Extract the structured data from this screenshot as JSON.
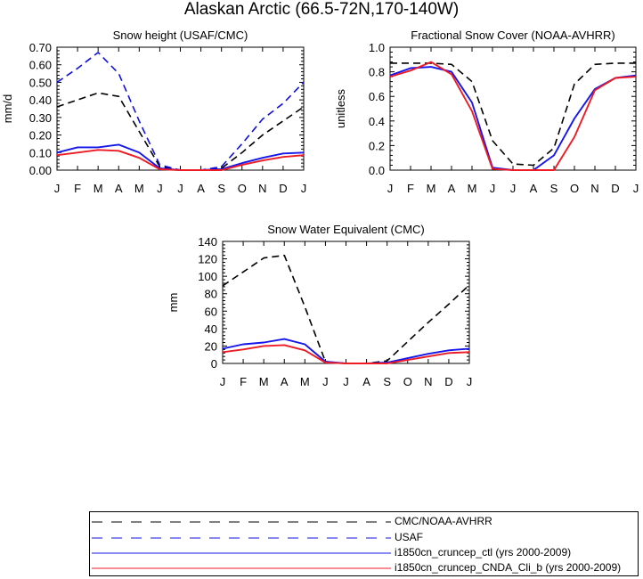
{
  "title": "Alaskan Arctic (66.5-72N,170-140W)",
  "colors": {
    "obs": "#000000",
    "usaf": "#1010dd",
    "ctl": "#1515ee",
    "cnda": "#ee1b24"
  },
  "legend": [
    {
      "key": "obs",
      "label": "CMC/NOAA-AVHRR",
      "dashed": true
    },
    {
      "key": "usaf",
      "label": "USAF",
      "dashed": true
    },
    {
      "key": "ctl",
      "label": "i1850cn_cruncep_ctl (yrs 2000-2009)",
      "dashed": false
    },
    {
      "key": "cnda",
      "label": "i1850cn_cruncep_CNDA_Cli_b (yrs 2000-2009)",
      "dashed": false
    }
  ],
  "chart_data": [
    {
      "type": "line",
      "title": "Snow height (USAF/CMC)",
      "ylabel": "mm/d",
      "categories": [
        "J",
        "F",
        "M",
        "A",
        "M",
        "J",
        "J",
        "A",
        "S",
        "O",
        "N",
        "D",
        "J"
      ],
      "ylim": [
        0,
        0.7
      ],
      "yticks": [
        "0.00",
        "0.10",
        "0.20",
        "0.30",
        "0.40",
        "0.50",
        "0.60",
        "0.70"
      ],
      "series": [
        {
          "key": "obs",
          "dashed": true,
          "values": [
            0.36,
            0.4,
            0.44,
            0.42,
            0.22,
            0.02,
            0.0,
            0.0,
            0.01,
            0.1,
            0.2,
            0.28,
            0.36
          ]
        },
        {
          "key": "usaf",
          "dashed": true,
          "values": [
            0.5,
            0.58,
            0.67,
            0.55,
            0.28,
            0.03,
            0.0,
            0.0,
            0.02,
            0.15,
            0.29,
            0.38,
            0.5
          ]
        },
        {
          "key": "ctl",
          "dashed": false,
          "values": [
            0.1,
            0.13,
            0.13,
            0.145,
            0.1,
            0.01,
            0.0,
            0.0,
            0.005,
            0.04,
            0.07,
            0.095,
            0.1
          ]
        },
        {
          "key": "cnda",
          "dashed": false,
          "values": [
            0.085,
            0.1,
            0.115,
            0.11,
            0.07,
            0.005,
            0.0,
            0.0,
            0.0,
            0.03,
            0.055,
            0.075,
            0.085
          ]
        }
      ]
    },
    {
      "type": "line",
      "title": "Fractional Snow Cover (NOAA-AVHRR)",
      "ylabel": "unitless",
      "categories": [
        "J",
        "F",
        "M",
        "A",
        "M",
        "J",
        "J",
        "A",
        "S",
        "O",
        "N",
        "D",
        "J"
      ],
      "ylim": [
        0,
        1.0
      ],
      "yticks": [
        "0.0",
        "0.2",
        "0.4",
        "0.6",
        "0.8",
        "1.0"
      ],
      "series": [
        {
          "key": "obs",
          "dashed": true,
          "values": [
            0.87,
            0.87,
            0.87,
            0.86,
            0.72,
            0.24,
            0.05,
            0.04,
            0.18,
            0.7,
            0.86,
            0.87,
            0.87
          ]
        },
        {
          "key": "ctl",
          "dashed": false,
          "values": [
            0.77,
            0.83,
            0.84,
            0.8,
            0.55,
            0.02,
            0.0,
            0.0,
            0.12,
            0.42,
            0.66,
            0.75,
            0.77
          ]
        },
        {
          "key": "cnda",
          "dashed": false,
          "values": [
            0.76,
            0.81,
            0.88,
            0.78,
            0.48,
            0.01,
            0.0,
            0.0,
            0.0,
            0.27,
            0.65,
            0.75,
            0.76
          ]
        }
      ]
    },
    {
      "type": "line",
      "title": "Snow Water Equivalent (CMC)",
      "ylabel": "mm",
      "categories": [
        "J",
        "F",
        "M",
        "A",
        "M",
        "J",
        "J",
        "A",
        "S",
        "O",
        "N",
        "D",
        "J"
      ],
      "ylim": [
        0,
        140
      ],
      "yticks": [
        "0",
        "20",
        "40",
        "60",
        "80",
        "100",
        "120",
        "140"
      ],
      "series": [
        {
          "key": "obs",
          "dashed": true,
          "values": [
            89,
            105,
            121,
            124,
            65,
            2,
            0,
            0,
            3,
            25,
            47,
            68,
            90
          ]
        },
        {
          "key": "ctl",
          "dashed": false,
          "values": [
            17,
            22,
            24,
            28,
            22,
            2,
            0,
            0,
            1,
            6,
            11,
            15,
            17
          ]
        },
        {
          "key": "cnda",
          "dashed": false,
          "values": [
            13,
            16,
            20,
            21,
            15,
            1,
            0,
            0,
            0,
            4,
            8,
            12,
            13
          ]
        }
      ]
    }
  ]
}
